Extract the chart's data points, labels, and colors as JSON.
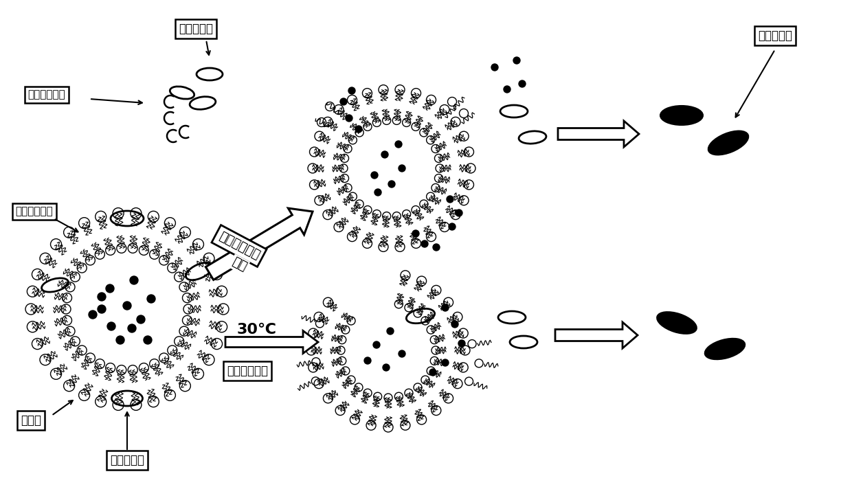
{
  "bg_color": "#ffffff",
  "labels": {
    "live_bacteria": "活的腐败菌",
    "secreted_protease": "分泌的蛋白酶",
    "phospholipid_bilayer": "磷脂双分子层",
    "protease_hydrolyze_line1": "蛋白酶水解酪",
    "protease_hydrolyze_line2": "蛋白",
    "dead_bacteria": "死的腐败菌",
    "casein": "酪蛋白",
    "cinnamaldehyde": "肉桂醛精油",
    "bilayer_loose": "双分子层松散",
    "temp_30": "30℃"
  }
}
